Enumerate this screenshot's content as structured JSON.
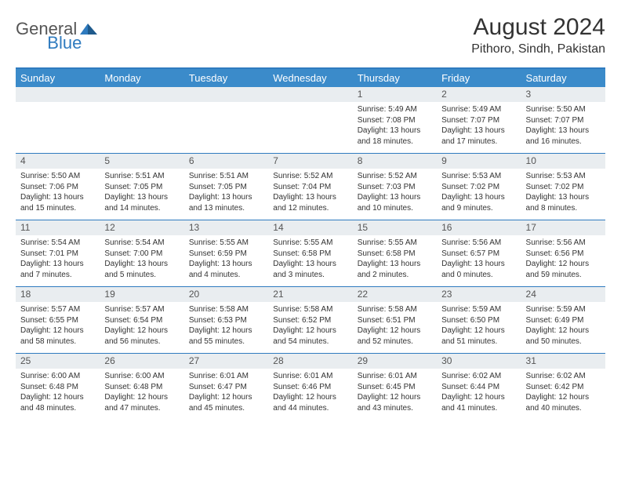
{
  "logo": {
    "general": "General",
    "blue": "Blue"
  },
  "title": "August 2024",
  "location": "Pithoro, Sindh, Pakistan",
  "colors": {
    "header_bg": "#3b8bca",
    "rule": "#2f7bbf",
    "num_bg": "#e9edf0",
    "text": "#333333"
  },
  "days_of_week": [
    "Sunday",
    "Monday",
    "Tuesday",
    "Wednesday",
    "Thursday",
    "Friday",
    "Saturday"
  ],
  "weeks": [
    {
      "nums": [
        "",
        "",
        "",
        "",
        "1",
        "2",
        "3"
      ],
      "cells": [
        {},
        {},
        {},
        {},
        {
          "sunrise": "Sunrise: 5:49 AM",
          "sunset": "Sunset: 7:08 PM",
          "day1": "Daylight: 13 hours",
          "day2": "and 18 minutes."
        },
        {
          "sunrise": "Sunrise: 5:49 AM",
          "sunset": "Sunset: 7:07 PM",
          "day1": "Daylight: 13 hours",
          "day2": "and 17 minutes."
        },
        {
          "sunrise": "Sunrise: 5:50 AM",
          "sunset": "Sunset: 7:07 PM",
          "day1": "Daylight: 13 hours",
          "day2": "and 16 minutes."
        }
      ]
    },
    {
      "nums": [
        "4",
        "5",
        "6",
        "7",
        "8",
        "9",
        "10"
      ],
      "cells": [
        {
          "sunrise": "Sunrise: 5:50 AM",
          "sunset": "Sunset: 7:06 PM",
          "day1": "Daylight: 13 hours",
          "day2": "and 15 minutes."
        },
        {
          "sunrise": "Sunrise: 5:51 AM",
          "sunset": "Sunset: 7:05 PM",
          "day1": "Daylight: 13 hours",
          "day2": "and 14 minutes."
        },
        {
          "sunrise": "Sunrise: 5:51 AM",
          "sunset": "Sunset: 7:05 PM",
          "day1": "Daylight: 13 hours",
          "day2": "and 13 minutes."
        },
        {
          "sunrise": "Sunrise: 5:52 AM",
          "sunset": "Sunset: 7:04 PM",
          "day1": "Daylight: 13 hours",
          "day2": "and 12 minutes."
        },
        {
          "sunrise": "Sunrise: 5:52 AM",
          "sunset": "Sunset: 7:03 PM",
          "day1": "Daylight: 13 hours",
          "day2": "and 10 minutes."
        },
        {
          "sunrise": "Sunrise: 5:53 AM",
          "sunset": "Sunset: 7:02 PM",
          "day1": "Daylight: 13 hours",
          "day2": "and 9 minutes."
        },
        {
          "sunrise": "Sunrise: 5:53 AM",
          "sunset": "Sunset: 7:02 PM",
          "day1": "Daylight: 13 hours",
          "day2": "and 8 minutes."
        }
      ]
    },
    {
      "nums": [
        "11",
        "12",
        "13",
        "14",
        "15",
        "16",
        "17"
      ],
      "cells": [
        {
          "sunrise": "Sunrise: 5:54 AM",
          "sunset": "Sunset: 7:01 PM",
          "day1": "Daylight: 13 hours",
          "day2": "and 7 minutes."
        },
        {
          "sunrise": "Sunrise: 5:54 AM",
          "sunset": "Sunset: 7:00 PM",
          "day1": "Daylight: 13 hours",
          "day2": "and 5 minutes."
        },
        {
          "sunrise": "Sunrise: 5:55 AM",
          "sunset": "Sunset: 6:59 PM",
          "day1": "Daylight: 13 hours",
          "day2": "and 4 minutes."
        },
        {
          "sunrise": "Sunrise: 5:55 AM",
          "sunset": "Sunset: 6:58 PM",
          "day1": "Daylight: 13 hours",
          "day2": "and 3 minutes."
        },
        {
          "sunrise": "Sunrise: 5:55 AM",
          "sunset": "Sunset: 6:58 PM",
          "day1": "Daylight: 13 hours",
          "day2": "and 2 minutes."
        },
        {
          "sunrise": "Sunrise: 5:56 AM",
          "sunset": "Sunset: 6:57 PM",
          "day1": "Daylight: 13 hours",
          "day2": "and 0 minutes."
        },
        {
          "sunrise": "Sunrise: 5:56 AM",
          "sunset": "Sunset: 6:56 PM",
          "day1": "Daylight: 12 hours",
          "day2": "and 59 minutes."
        }
      ]
    },
    {
      "nums": [
        "18",
        "19",
        "20",
        "21",
        "22",
        "23",
        "24"
      ],
      "cells": [
        {
          "sunrise": "Sunrise: 5:57 AM",
          "sunset": "Sunset: 6:55 PM",
          "day1": "Daylight: 12 hours",
          "day2": "and 58 minutes."
        },
        {
          "sunrise": "Sunrise: 5:57 AM",
          "sunset": "Sunset: 6:54 PM",
          "day1": "Daylight: 12 hours",
          "day2": "and 56 minutes."
        },
        {
          "sunrise": "Sunrise: 5:58 AM",
          "sunset": "Sunset: 6:53 PM",
          "day1": "Daylight: 12 hours",
          "day2": "and 55 minutes."
        },
        {
          "sunrise": "Sunrise: 5:58 AM",
          "sunset": "Sunset: 6:52 PM",
          "day1": "Daylight: 12 hours",
          "day2": "and 54 minutes."
        },
        {
          "sunrise": "Sunrise: 5:58 AM",
          "sunset": "Sunset: 6:51 PM",
          "day1": "Daylight: 12 hours",
          "day2": "and 52 minutes."
        },
        {
          "sunrise": "Sunrise: 5:59 AM",
          "sunset": "Sunset: 6:50 PM",
          "day1": "Daylight: 12 hours",
          "day2": "and 51 minutes."
        },
        {
          "sunrise": "Sunrise: 5:59 AM",
          "sunset": "Sunset: 6:49 PM",
          "day1": "Daylight: 12 hours",
          "day2": "and 50 minutes."
        }
      ]
    },
    {
      "nums": [
        "25",
        "26",
        "27",
        "28",
        "29",
        "30",
        "31"
      ],
      "cells": [
        {
          "sunrise": "Sunrise: 6:00 AM",
          "sunset": "Sunset: 6:48 PM",
          "day1": "Daylight: 12 hours",
          "day2": "and 48 minutes."
        },
        {
          "sunrise": "Sunrise: 6:00 AM",
          "sunset": "Sunset: 6:48 PM",
          "day1": "Daylight: 12 hours",
          "day2": "and 47 minutes."
        },
        {
          "sunrise": "Sunrise: 6:01 AM",
          "sunset": "Sunset: 6:47 PM",
          "day1": "Daylight: 12 hours",
          "day2": "and 45 minutes."
        },
        {
          "sunrise": "Sunrise: 6:01 AM",
          "sunset": "Sunset: 6:46 PM",
          "day1": "Daylight: 12 hours",
          "day2": "and 44 minutes."
        },
        {
          "sunrise": "Sunrise: 6:01 AM",
          "sunset": "Sunset: 6:45 PM",
          "day1": "Daylight: 12 hours",
          "day2": "and 43 minutes."
        },
        {
          "sunrise": "Sunrise: 6:02 AM",
          "sunset": "Sunset: 6:44 PM",
          "day1": "Daylight: 12 hours",
          "day2": "and 41 minutes."
        },
        {
          "sunrise": "Sunrise: 6:02 AM",
          "sunset": "Sunset: 6:42 PM",
          "day1": "Daylight: 12 hours",
          "day2": "and 40 minutes."
        }
      ]
    }
  ]
}
